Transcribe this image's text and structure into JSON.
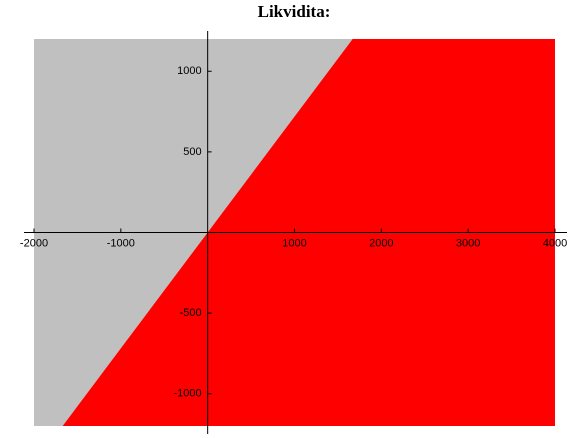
{
  "chart_data": {
    "type": "region",
    "title": "Likvidita:",
    "xlim": [
      -2000,
      4000
    ],
    "ylim": [
      -1200,
      1200
    ],
    "xticks": [
      -2000,
      -1000,
      1000,
      2000,
      3000,
      4000
    ],
    "yticks": [
      -1000,
      -500,
      500,
      1000
    ],
    "boundary": {
      "x": [
        -1670,
        1670
      ],
      "values": [
        -1200,
        1200
      ]
    },
    "colors": {
      "above": "#c0c0c0",
      "below": "#ff0000"
    }
  }
}
